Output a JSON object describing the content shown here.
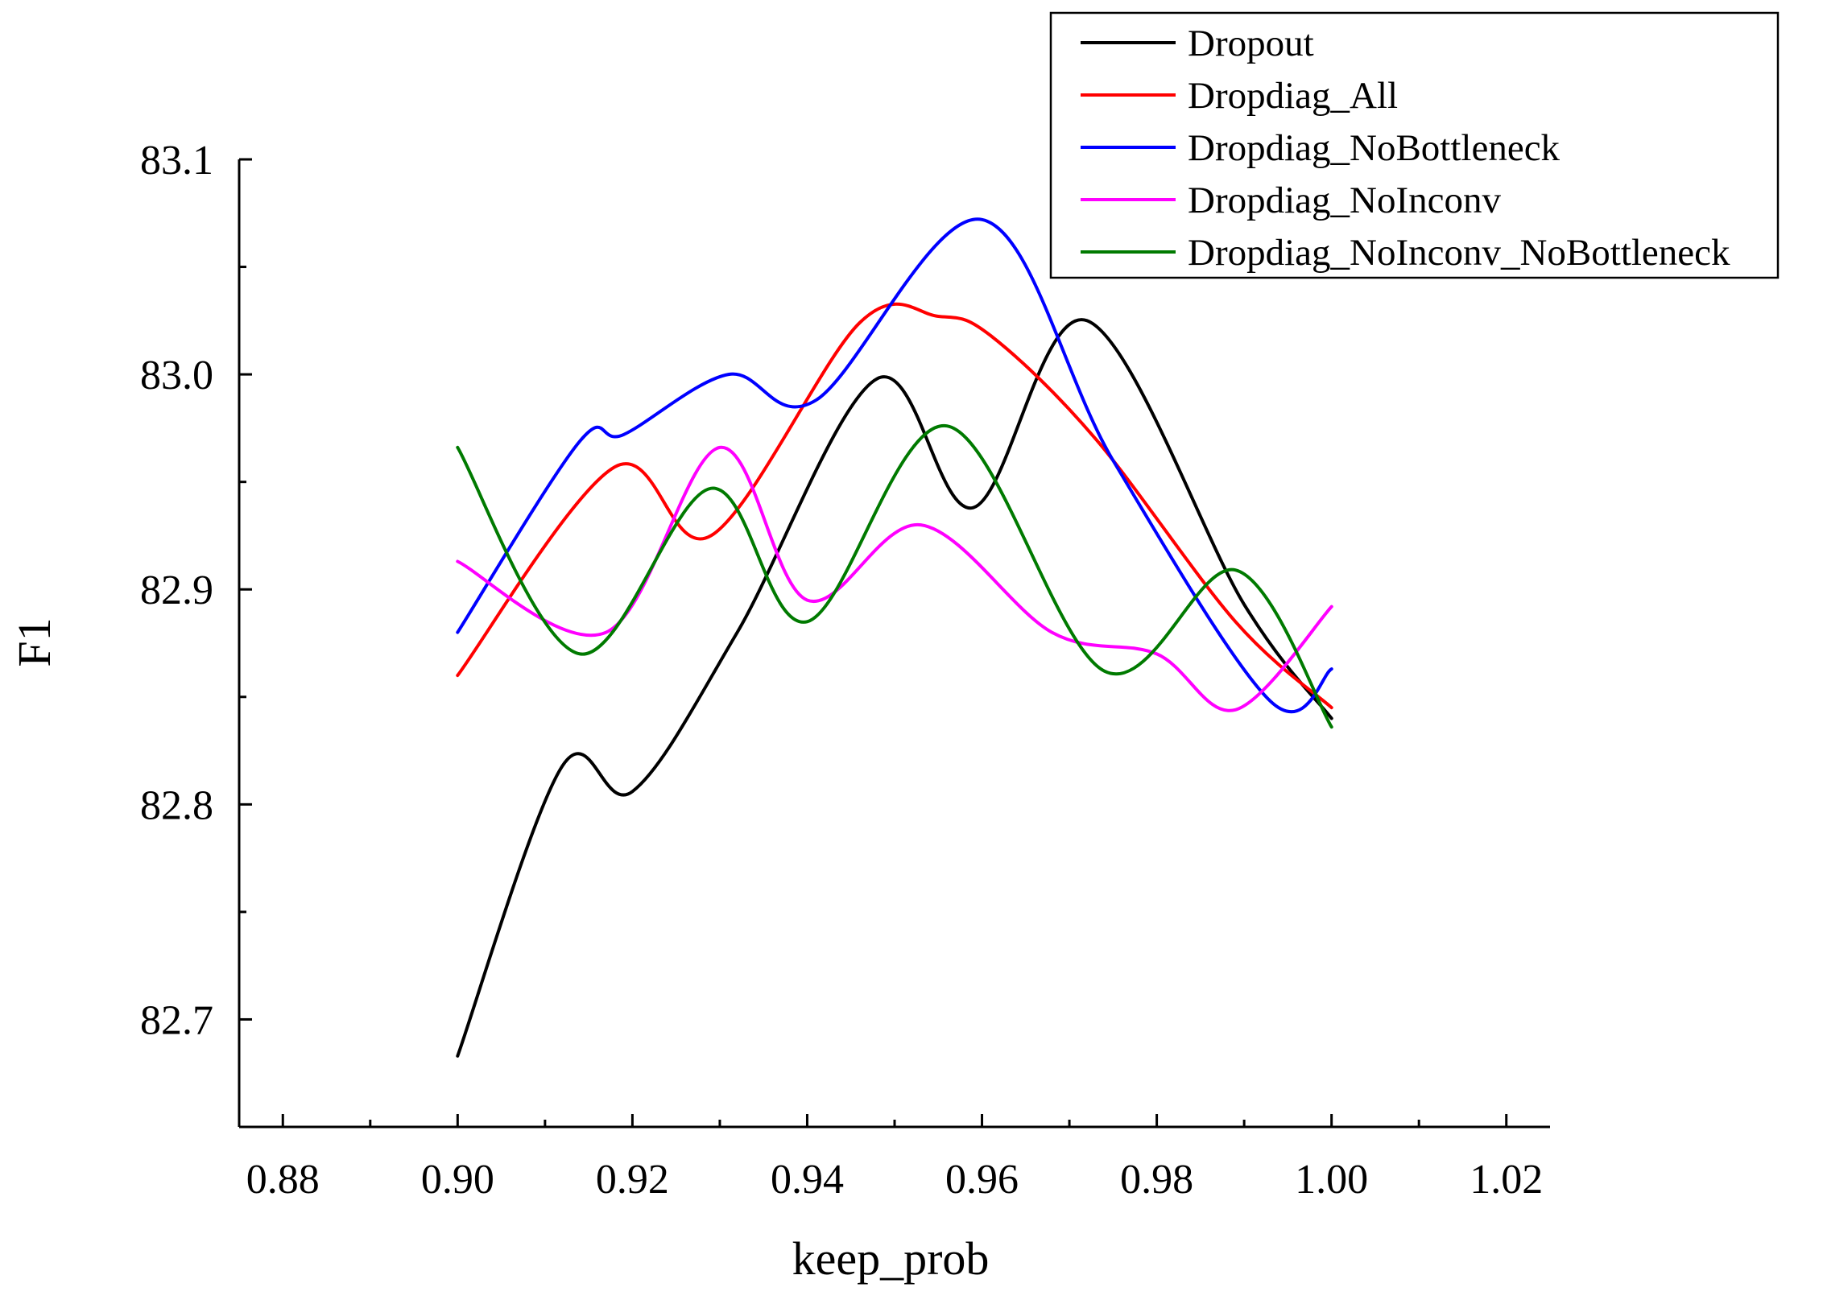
{
  "chart_data": {
    "type": "line",
    "title": "",
    "xlabel": "keep_prob",
    "ylabel": "F1",
    "xlim": [
      0.875,
      1.025
    ],
    "ylim": [
      82.65,
      83.1
    ],
    "x_ticks": [
      "0.88",
      "0.90",
      "0.92",
      "0.94",
      "0.96",
      "0.98",
      "1.00",
      "1.02"
    ],
    "y_ticks": [
      "82.7",
      "82.8",
      "82.9",
      "83.0",
      "83.1"
    ],
    "x_tick_values": [
      0.88,
      0.9,
      0.92,
      0.94,
      0.96,
      0.98,
      1.0,
      1.02
    ],
    "y_tick_values": [
      82.7,
      82.8,
      82.9,
      83.0,
      83.1
    ],
    "grid": false,
    "legend_position": "top-right",
    "series": [
      {
        "name": "Dropout",
        "color": "#000000",
        "points": [
          [
            0.9,
            82.683
          ],
          [
            0.912,
            82.818
          ],
          [
            0.92,
            82.806
          ],
          [
            0.932,
            82.88
          ],
          [
            0.948,
            82.998
          ],
          [
            0.959,
            82.938
          ],
          [
            0.972,
            83.025
          ],
          [
            0.99,
            82.893
          ],
          [
            1.0,
            82.84
          ]
        ]
      },
      {
        "name": "Dropdiag_All",
        "color": "#ff0000",
        "points": [
          [
            0.9,
            82.86
          ],
          [
            0.918,
            82.957
          ],
          [
            0.929,
            82.925
          ],
          [
            0.946,
            83.024
          ],
          [
            0.955,
            83.027
          ],
          [
            0.961,
            83.018
          ],
          [
            0.973,
            82.97
          ],
          [
            0.989,
            82.885
          ],
          [
            1.0,
            82.845
          ]
        ]
      },
      {
        "name": "Dropdiag_NoBottleneck",
        "color": "#0000ff",
        "points": [
          [
            0.9,
            82.88
          ],
          [
            0.914,
            82.969
          ],
          [
            0.919,
            82.972
          ],
          [
            0.931,
            83.0
          ],
          [
            0.941,
            82.988
          ],
          [
            0.96,
            83.072
          ],
          [
            0.975,
            82.96
          ],
          [
            0.993,
            82.848
          ],
          [
            1.0,
            82.863
          ]
        ]
      },
      {
        "name": "Dropdiag_NoInconv",
        "color": "#ff00ff",
        "points": [
          [
            0.9,
            82.913
          ],
          [
            0.917,
            82.88
          ],
          [
            0.93,
            82.966
          ],
          [
            0.94,
            82.895
          ],
          [
            0.953,
            82.93
          ],
          [
            0.968,
            82.88
          ],
          [
            0.98,
            82.87
          ],
          [
            0.989,
            82.844
          ],
          [
            1.0,
            82.892
          ]
        ]
      },
      {
        "name": "Dropdiag_NoInconv_NoBottleneck",
        "color": "#007a00",
        "points": [
          [
            0.9,
            82.966
          ],
          [
            0.914,
            82.87
          ],
          [
            0.929,
            82.947
          ],
          [
            0.94,
            82.885
          ],
          [
            0.956,
            82.976
          ],
          [
            0.974,
            82.862
          ],
          [
            0.989,
            82.909
          ],
          [
            1.0,
            82.836
          ]
        ]
      }
    ]
  }
}
